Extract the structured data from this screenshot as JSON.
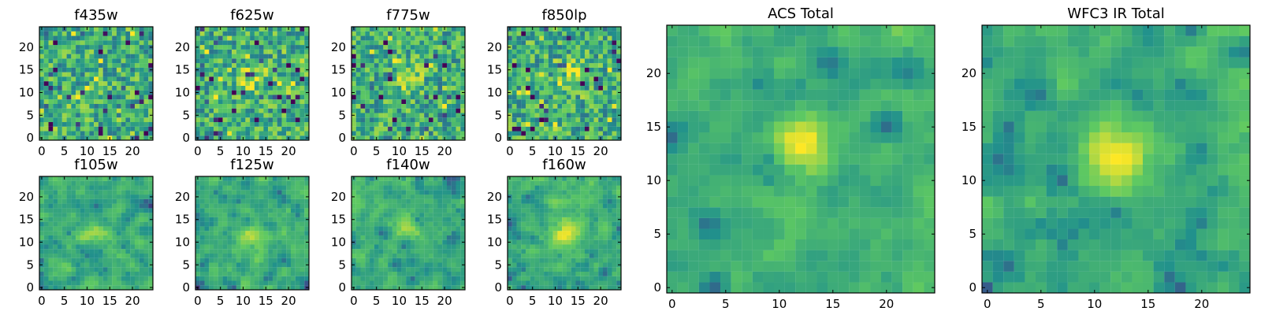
{
  "figure": {
    "background": "#ffffff",
    "colormap": "viridis",
    "colormap_stops": [
      "#440154",
      "#3b528b",
      "#21918c",
      "#5ec962",
      "#fde725"
    ],
    "frame_color": "#000000"
  },
  "chart_data": [
    {
      "type": "heatmap",
      "title": "f435w",
      "grid_size": 25,
      "xlim": [
        0,
        24
      ],
      "ylim": [
        0,
        24
      ],
      "xticks": [
        0,
        5,
        10,
        15,
        20
      ],
      "yticks": [
        0,
        5,
        10,
        15,
        20
      ],
      "source_peak": null,
      "value_range": [
        0,
        1
      ],
      "texture": "noisy, no clear central source"
    },
    {
      "type": "heatmap",
      "title": "f625w",
      "grid_size": 25,
      "xlim": [
        0,
        24
      ],
      "ylim": [
        0,
        24
      ],
      "xticks": [
        0,
        5,
        10,
        15,
        20
      ],
      "yticks": [
        0,
        5,
        10,
        15,
        20
      ],
      "source_peak": [
        12,
        13
      ],
      "value_range": [
        0,
        1
      ],
      "texture": "noisy with faint central brightening"
    },
    {
      "type": "heatmap",
      "title": "f775w",
      "grid_size": 25,
      "xlim": [
        0,
        24
      ],
      "ylim": [
        0,
        24
      ],
      "xticks": [
        0,
        5,
        10,
        15,
        20
      ],
      "yticks": [
        0,
        5,
        10,
        15,
        20
      ],
      "source_peak": [
        12,
        13
      ],
      "value_range": [
        0,
        1
      ],
      "texture": "noisy with central brightening"
    },
    {
      "type": "heatmap",
      "title": "f850lp",
      "grid_size": 25,
      "xlim": [
        0,
        24
      ],
      "ylim": [
        0,
        24
      ],
      "xticks": [
        0,
        5,
        10,
        15,
        20
      ],
      "yticks": [
        0,
        5,
        10,
        15,
        20
      ],
      "source_peak": [
        14,
        14
      ],
      "value_range": [
        0,
        1
      ],
      "texture": "noisy with faint central brightening"
    },
    {
      "type": "heatmap",
      "title": "f105w",
      "grid_size": 25,
      "xlim": [
        0,
        24
      ],
      "ylim": [
        0,
        24
      ],
      "xticks": [
        0,
        5,
        10,
        15,
        20
      ],
      "yticks": [
        0,
        5,
        10,
        15,
        20
      ],
      "source_peak": [
        12,
        12
      ],
      "value_range": [
        0,
        1
      ],
      "texture": "smoother noise, faint central source"
    },
    {
      "type": "heatmap",
      "title": "f125w",
      "grid_size": 25,
      "xlim": [
        0,
        24
      ],
      "ylim": [
        0,
        24
      ],
      "xticks": [
        0,
        5,
        10,
        15,
        20
      ],
      "yticks": [
        0,
        5,
        10,
        15,
        20
      ],
      "source_peak": [
        12,
        12
      ],
      "value_range": [
        0,
        1
      ],
      "texture": "smoother noise, central source"
    },
    {
      "type": "heatmap",
      "title": "f140w",
      "grid_size": 25,
      "xlim": [
        0,
        24
      ],
      "ylim": [
        0,
        24
      ],
      "xticks": [
        0,
        5,
        10,
        15,
        20
      ],
      "yticks": [
        0,
        5,
        10,
        15,
        20
      ],
      "source_peak": [
        12,
        13
      ],
      "value_range": [
        0,
        1
      ],
      "texture": "smoother noise, central source"
    },
    {
      "type": "heatmap",
      "title": "f160w",
      "grid_size": 25,
      "xlim": [
        0,
        24
      ],
      "ylim": [
        0,
        24
      ],
      "xticks": [
        0,
        5,
        10,
        15,
        20
      ],
      "yticks": [
        0,
        5,
        10,
        15,
        20
      ],
      "source_peak": [
        12,
        12
      ],
      "value_range": [
        0,
        1
      ],
      "texture": "smoother noise, central source"
    },
    {
      "type": "heatmap",
      "title": "ACS Total",
      "grid_size": 25,
      "xlim": [
        0,
        24
      ],
      "ylim": [
        0,
        24
      ],
      "xticks": [
        0,
        5,
        10,
        15,
        20
      ],
      "yticks": [
        0,
        5,
        10,
        15,
        20
      ],
      "source_peak": [
        12,
        13
      ],
      "value_range": [
        0,
        1
      ],
      "texture": "stacked ACS image with clear central source"
    },
    {
      "type": "heatmap",
      "title": "WFC3 IR Total",
      "grid_size": 25,
      "xlim": [
        0,
        24
      ],
      "ylim": [
        0,
        24
      ],
      "xticks": [
        0,
        5,
        10,
        15,
        20
      ],
      "yticks": [
        0,
        5,
        10,
        15,
        20
      ],
      "source_peak": [
        12,
        12
      ],
      "value_range": [
        0,
        1
      ],
      "texture": "stacked IR image with clear central source"
    }
  ]
}
